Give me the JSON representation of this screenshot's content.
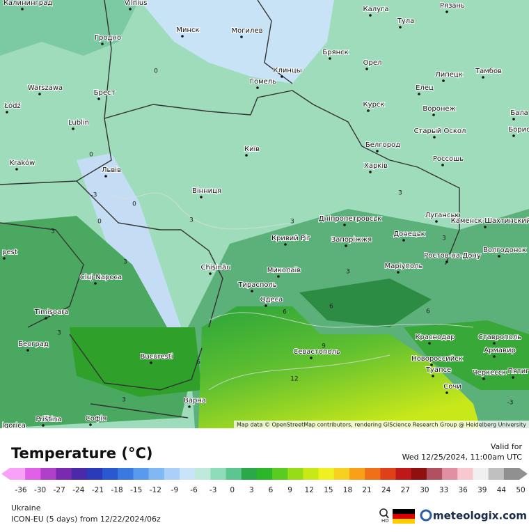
{
  "map": {
    "cities": [
      "Калининград",
      "Vilnius",
      "Калуга",
      "Рязань",
      "Тула",
      "Гродно",
      "Минск",
      "Могилев",
      "Брянск",
      "Клинцы",
      "Орел",
      "Липецк",
      "Тамбов",
      "Warszawa",
      "Брест",
      "Гомель",
      "Елец",
      "Łódź",
      "Курск",
      "Воронеж",
      "Бала",
      "Lublin",
      "Старый Оскол",
      "Борис",
      "Белгород",
      "Київ",
      "Kraków",
      "Львів",
      "Харків",
      "Россошь",
      "Вінниця",
      "Луганськ",
      "Дніпропетровськ",
      "Каменск-Шахтинский",
      "pest",
      "Кривий Ріг",
      "Запоріжжя",
      "Донецьк",
      "Ростов-на-Дону",
      "Волгодонск",
      "Cluj-Napoca",
      "Chișinău",
      "Миколаїв",
      "Маріуполь",
      "Тирасполь",
      "Timișoara",
      "Одеса",
      "Краснодар",
      "Ставрополь",
      "Београд",
      "Севастополь",
      "Армавир",
      "Bucuresti",
      "Новороссийск",
      "Туапсе",
      "Черкесск",
      "Пятиг",
      "Сочи",
      "Варна",
      "Priština",
      "Софія",
      "lgorica"
    ],
    "contour_labels": [
      0,
      0,
      0,
      -3,
      0,
      3,
      3,
      3,
      3,
      3,
      3,
      6,
      6,
      6,
      9,
      12,
      3,
      3,
      6,
      3,
      -3
    ],
    "attribution": "Map data © OpenStreetMap contributors, rendering GIScience Research Group @ Heidelberg University"
  },
  "panel": {
    "title": "Temperature (°C)",
    "valid_label": "Valid for",
    "valid_time": "Wed 12/25/2024, 11:00am UTC",
    "colorbar": {
      "ticks": [
        -36,
        -30,
        -27,
        -24,
        -21,
        -18,
        -15,
        -12,
        -9,
        -6,
        -3,
        0,
        3,
        6,
        9,
        12,
        15,
        18,
        21,
        24,
        27,
        30,
        33,
        36,
        39,
        44,
        50
      ],
      "colors": [
        "#f9a0f9",
        "#e060e8",
        "#b040c8",
        "#7a2ab0",
        "#4a2aa8",
        "#2a3ab8",
        "#2a58d0",
        "#3a7ae0",
        "#5a9aee",
        "#80b8f4",
        "#a8d0f8",
        "#c8e4fa",
        "#bfeadb",
        "#8fdcb8",
        "#5cc690",
        "#2aa84a",
        "#2ab82a",
        "#58cc20",
        "#98dc18",
        "#c8e818",
        "#f0f020",
        "#f8d020",
        "#f8a018",
        "#f07018",
        "#e04018",
        "#c01818",
        "#901010",
        "#b05060",
        "#e090a0",
        "#f8c8d0",
        "#f0f0f0",
        "#c0c0c0",
        "#909090"
      ]
    },
    "region": "Ukraine",
    "model": "ICON-EU (5 days) from 12/22/2024/06z",
    "brand": "meteologix.com",
    "hd": "HD"
  }
}
